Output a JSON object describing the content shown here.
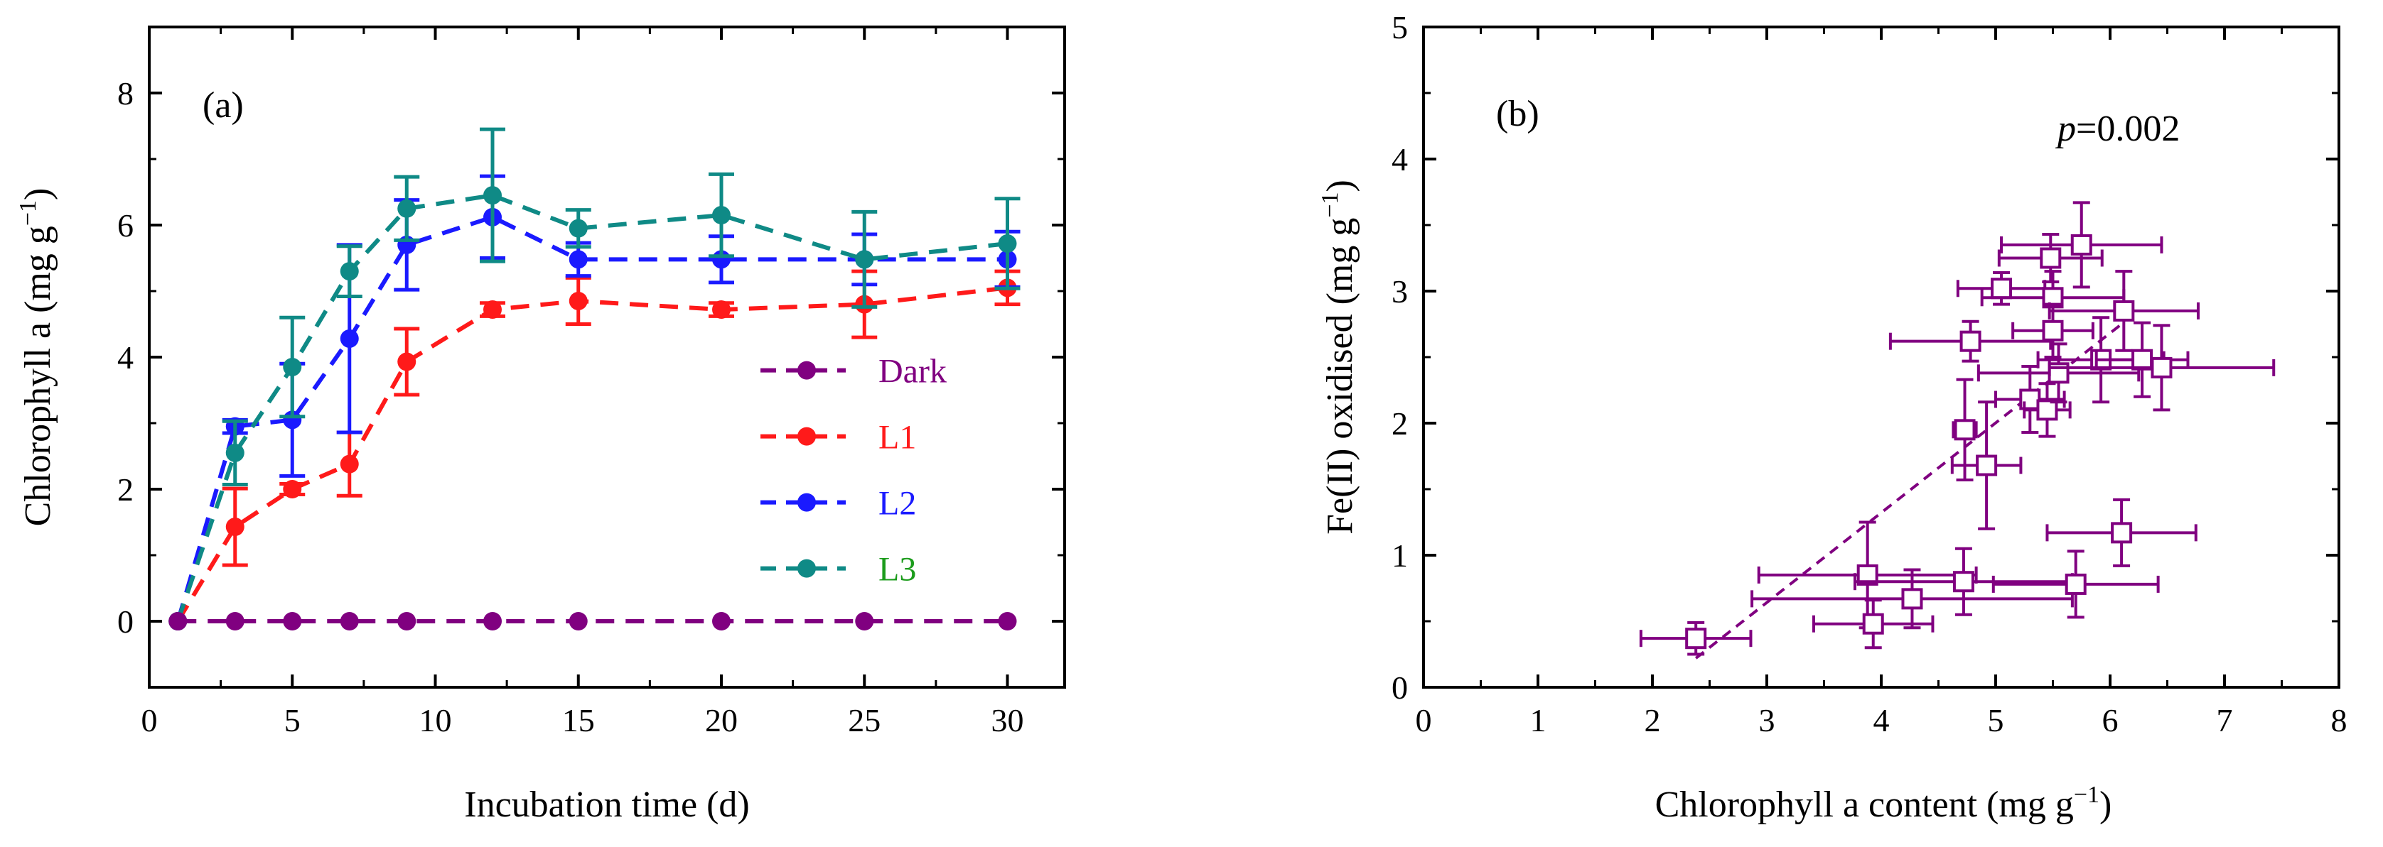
{
  "chart_data": [
    {
      "type": "line",
      "panel_label": "(a)",
      "xlabel": "Incubation time (d)",
      "ylabel": "Chlorophyll a (mg g",
      "ylabel_sup": "−1",
      "ylabel_close": ")",
      "xlim": [
        0,
        32
      ],
      "ylim": [
        -1,
        9
      ],
      "xticks": [
        0,
        5,
        10,
        15,
        20,
        25,
        30
      ],
      "yticks": [
        0,
        2,
        4,
        6,
        8
      ],
      "x": [
        1,
        3,
        5,
        7,
        9,
        12,
        15,
        20,
        25,
        30
      ],
      "series": [
        {
          "name": "Dark",
          "color": "#800080",
          "label_color": "#800080",
          "values": [
            0,
            0,
            0,
            0,
            0,
            0,
            0,
            0,
            0,
            0
          ],
          "errors": [
            0,
            0,
            0,
            0,
            0,
            0,
            0,
            0,
            0,
            0
          ]
        },
        {
          "name": "L1",
          "color": "#ff1a1a",
          "label_color": "#ff1a1a",
          "values": [
            0,
            1.43,
            2.0,
            2.38,
            3.93,
            4.72,
            4.85,
            4.72,
            4.8,
            5.05
          ],
          "errors": [
            0,
            0.58,
            0.08,
            0.48,
            0.5,
            0.1,
            0.35,
            0.1,
            0.5,
            0.25
          ]
        },
        {
          "name": "L2",
          "color": "#1a1aff",
          "label_color": "#1a1aff",
          "values": [
            0,
            2.95,
            3.05,
            4.28,
            5.7,
            6.12,
            5.48,
            5.48,
            5.48,
            5.48
          ],
          "errors": [
            0,
            0.1,
            0.85,
            1.42,
            0.68,
            0.62,
            0.25,
            0.35,
            0.38,
            0.42
          ]
        },
        {
          "name": "L3",
          "color": "#0f8a86",
          "label_color": "#1c9c1c",
          "values": [
            0,
            2.55,
            3.85,
            5.3,
            6.25,
            6.45,
            5.95,
            6.15,
            5.48,
            5.72
          ],
          "errors": [
            0,
            0.48,
            0.75,
            0.38,
            0.48,
            1.0,
            0.28,
            0.62,
            0.72,
            0.68
          ]
        }
      ]
    },
    {
      "type": "scatter",
      "panel_label": "(b)",
      "annotation": "=0.002",
      "annotation_p": "p",
      "xlabel": "Chlorophyll a content (mg g",
      "xlabel_sup": "−1",
      "xlabel_close": ")",
      "ylabel": "Fe(II) oxidised (mg g",
      "ylabel_sup": "−1",
      "ylabel_close": ")",
      "xlim": [
        0,
        8
      ],
      "ylim": [
        0,
        5
      ],
      "xticks": [
        0,
        1,
        2,
        3,
        4,
        5,
        6,
        7,
        8
      ],
      "yticks": [
        0,
        1,
        2,
        3,
        4,
        5
      ],
      "color": "#800080",
      "trend_line": {
        "x": [
          2.38,
          6.1
        ],
        "y": [
          0.22,
          2.75
        ]
      },
      "points": [
        {
          "x": 2.38,
          "y": 0.37,
          "xerr": 0.48,
          "yerr": 0.12
        },
        {
          "x": 3.88,
          "y": 0.85,
          "xerr": 0.95,
          "yerr": 0.4
        },
        {
          "x": 3.93,
          "y": 0.48,
          "xerr": 0.52,
          "yerr": 0.18
        },
        {
          "x": 4.27,
          "y": 0.67,
          "xerr": 1.4,
          "yerr": 0.22
        },
        {
          "x": 4.72,
          "y": 0.8,
          "xerr": 0.95,
          "yerr": 0.25
        },
        {
          "x": 4.73,
          "y": 1.95,
          "xerr": 0.1,
          "yerr": 0.38
        },
        {
          "x": 4.78,
          "y": 2.62,
          "xerr": 0.7,
          "yerr": 0.15
        },
        {
          "x": 4.92,
          "y": 1.68,
          "xerr": 0.3,
          "yerr": 0.48
        },
        {
          "x": 5.05,
          "y": 3.02,
          "xerr": 0.38,
          "yerr": 0.12
        },
        {
          "x": 5.3,
          "y": 2.18,
          "xerr": 0.3,
          "yerr": 0.25
        },
        {
          "x": 5.45,
          "y": 2.1,
          "xerr": 0.2,
          "yerr": 0.2
        },
        {
          "x": 5.48,
          "y": 3.25,
          "xerr": 0.45,
          "yerr": 0.18
        },
        {
          "x": 5.5,
          "y": 2.95,
          "xerr": 0.62,
          "yerr": 0.2
        },
        {
          "x": 5.5,
          "y": 2.7,
          "xerr": 0.35,
          "yerr": 0.2
        },
        {
          "x": 5.55,
          "y": 2.38,
          "xerr": 0.7,
          "yerr": 0.22
        },
        {
          "x": 5.7,
          "y": 0.78,
          "xerr": 0.72,
          "yerr": 0.25
        },
        {
          "x": 5.75,
          "y": 3.35,
          "xerr": 0.7,
          "yerr": 0.32
        },
        {
          "x": 5.92,
          "y": 2.48,
          "xerr": 0.55,
          "yerr": 0.32
        },
        {
          "x": 6.1,
          "y": 1.17,
          "xerr": 0.65,
          "yerr": 0.25
        },
        {
          "x": 6.12,
          "y": 2.85,
          "xerr": 0.65,
          "yerr": 0.3
        },
        {
          "x": 6.28,
          "y": 2.48,
          "xerr": 0.4,
          "yerr": 0.28
        },
        {
          "x": 6.45,
          "y": 2.42,
          "xerr": 0.98,
          "yerr": 0.32
        }
      ]
    }
  ]
}
